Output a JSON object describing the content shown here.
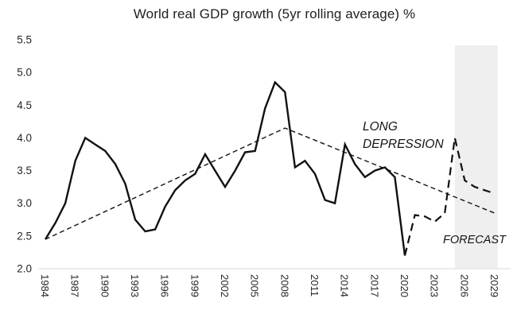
{
  "chart_data": {
    "type": "line",
    "title": "World real GDP growth (5yr rolling average) %",
    "xlabel": "",
    "ylabel": "",
    "ylim": [
      2.0,
      5.5
    ],
    "xlim": [
      1984,
      2029
    ],
    "grid": false,
    "legend_position": "none",
    "y_tick_labels": [
      "5.5",
      "5.0",
      "4.5",
      "4.0",
      "3.5",
      "3.0",
      "2.5",
      "2.0"
    ],
    "y_tick_values": [
      5.5,
      5.0,
      4.5,
      4.0,
      3.5,
      3.0,
      2.5,
      2.0
    ],
    "x_tick_labels": [
      "1984",
      "1987",
      "1990",
      "1993",
      "1996",
      "1999",
      "2002",
      "2005",
      "2008",
      "2011",
      "2014",
      "2017",
      "2020",
      "2023",
      "2026",
      "2029"
    ],
    "series": [
      {
        "id": "actual",
        "name": "World real GDP growth, 5yr rolling average (solid line, history)",
        "line_style": "solid",
        "x_start": 1984,
        "x_step": 1,
        "values": [
          2.45,
          2.7,
          3.0,
          3.65,
          4.0,
          3.9,
          3.8,
          3.6,
          3.3,
          2.75,
          2.57,
          2.6,
          2.95,
          3.2,
          3.35,
          3.45,
          3.75,
          3.5,
          3.25,
          3.5,
          3.78,
          3.8,
          4.45,
          4.85,
          4.7,
          3.55,
          3.65,
          3.45,
          3.05,
          3.0,
          3.9,
          3.6,
          3.4,
          3.5,
          3.55,
          3.4,
          2.2
        ]
      },
      {
        "id": "forecast",
        "name": "Estimate / forecast segment (dashed line)",
        "line_style": "dashed",
        "x_start": 2020,
        "x_step": 1,
        "values": [
          2.2,
          2.82,
          2.8,
          2.72,
          2.85,
          4.0,
          3.35,
          3.25,
          3.2,
          3.15
        ]
      }
    ],
    "trend_line": {
      "id": "trend",
      "name": "Long-run trend (thin dashed line)",
      "line_style": "thin-dashed",
      "points": [
        [
          1984,
          2.45
        ],
        [
          2008,
          4.15
        ],
        [
          2029,
          2.85
        ]
      ]
    },
    "forecast_band": {
      "from_year": 2025,
      "to_year": 2029.3
    },
    "annotations": {
      "long_depression": {
        "line1": "LONG",
        "line2": "DEPRESSION"
      },
      "forecast": "FORECAST"
    }
  },
  "colors": {
    "line": "#111111",
    "trend": "#111111",
    "band": "#efefef",
    "axis": "#d9d9d9",
    "text": "#262626"
  }
}
